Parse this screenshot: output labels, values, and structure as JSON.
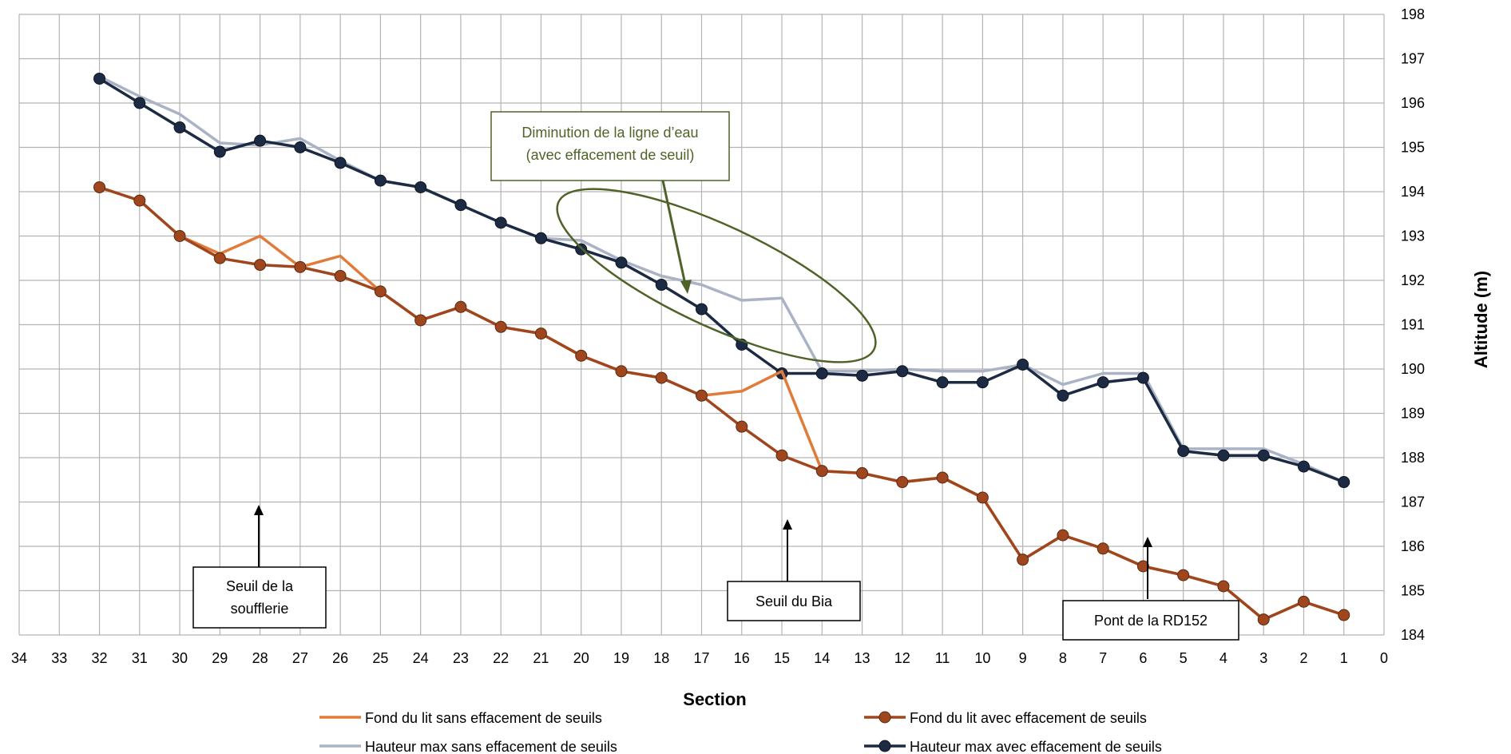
{
  "chart_data": {
    "type": "line",
    "xlabel": "Section",
    "ylabel": "Altitude (m)",
    "xlim": [
      34,
      0
    ],
    "x_reversed": true,
    "ylim": [
      184,
      198
    ],
    "y_axis_position": "right",
    "grid": true,
    "legend_position": "bottom",
    "series": [
      {
        "name": "Fond du lit sans effacement de seuils",
        "color": "#e07b39",
        "marker": false,
        "points": [
          [
            32,
            194.1
          ],
          [
            31,
            193.8
          ],
          [
            30,
            193.0
          ],
          [
            29,
            192.6
          ],
          [
            28,
            193.0
          ],
          [
            27,
            192.3
          ],
          [
            26,
            192.55
          ],
          [
            25,
            191.75
          ],
          [
            24,
            191.1
          ],
          [
            23,
            191.4
          ],
          [
            22,
            190.95
          ],
          [
            21,
            190.8
          ],
          [
            20,
            190.3
          ],
          [
            19,
            189.95
          ],
          [
            18,
            189.8
          ],
          [
            17,
            189.4
          ],
          [
            16,
            189.5
          ],
          [
            15,
            189.95
          ],
          [
            14,
            187.7
          ],
          [
            13,
            187.65
          ],
          [
            12,
            187.45
          ],
          [
            11,
            187.55
          ],
          [
            10,
            187.1
          ],
          [
            9,
            185.7
          ],
          [
            8,
            186.25
          ],
          [
            7,
            185.95
          ],
          [
            6,
            185.55
          ],
          [
            5,
            185.35
          ],
          [
            4,
            185.1
          ],
          [
            3,
            184.35
          ],
          [
            2,
            184.75
          ],
          [
            1,
            184.45
          ]
        ]
      },
      {
        "name": "Fond du lit avec effacement de seuils",
        "color": "#a0461e",
        "marker": true,
        "points": [
          [
            32,
            194.1
          ],
          [
            31,
            193.8
          ],
          [
            30,
            193.0
          ],
          [
            29,
            192.5
          ],
          [
            28,
            192.35
          ],
          [
            27,
            192.3
          ],
          [
            26,
            192.1
          ],
          [
            25,
            191.75
          ],
          [
            24,
            191.1
          ],
          [
            23,
            191.4
          ],
          [
            22,
            190.95
          ],
          [
            21,
            190.8
          ],
          [
            20,
            190.3
          ],
          [
            19,
            189.95
          ],
          [
            18,
            189.8
          ],
          [
            17,
            189.4
          ],
          [
            16,
            188.7
          ],
          [
            15,
            188.05
          ],
          [
            14,
            187.7
          ],
          [
            13,
            187.65
          ],
          [
            12,
            187.45
          ],
          [
            11,
            187.55
          ],
          [
            10,
            187.1
          ],
          [
            9,
            185.7
          ],
          [
            8,
            186.25
          ],
          [
            7,
            185.95
          ],
          [
            6,
            185.55
          ],
          [
            5,
            185.35
          ],
          [
            4,
            185.1
          ],
          [
            3,
            184.35
          ],
          [
            2,
            184.75
          ],
          [
            1,
            184.45
          ]
        ]
      },
      {
        "name": "Hauteur max sans effacement de seuils",
        "color": "#aab3c6",
        "marker": false,
        "points": [
          [
            32,
            196.6
          ],
          [
            31,
            196.15
          ],
          [
            30,
            195.75
          ],
          [
            29,
            195.1
          ],
          [
            28,
            195.05
          ],
          [
            27,
            195.2
          ],
          [
            26,
            194.7
          ],
          [
            25,
            194.25
          ],
          [
            24,
            194.1
          ],
          [
            23,
            193.7
          ],
          [
            22,
            193.3
          ],
          [
            21,
            192.95
          ],
          [
            20,
            192.9
          ],
          [
            19,
            192.45
          ],
          [
            18,
            192.1
          ],
          [
            17,
            191.9
          ],
          [
            16,
            191.55
          ],
          [
            15,
            191.6
          ],
          [
            14,
            189.95
          ],
          [
            13,
            189.95
          ],
          [
            12,
            190.0
          ],
          [
            11,
            189.95
          ],
          [
            10,
            189.95
          ],
          [
            9,
            190.1
          ],
          [
            8,
            189.65
          ],
          [
            7,
            189.9
          ],
          [
            6,
            189.9
          ],
          [
            5,
            188.2
          ],
          [
            4,
            188.2
          ],
          [
            3,
            188.2
          ],
          [
            2,
            187.85
          ],
          [
            1,
            187.45
          ]
        ]
      },
      {
        "name": "Hauteur max avec effacement de seuils",
        "color": "#1c2b43",
        "marker": true,
        "points": [
          [
            32,
            196.55
          ],
          [
            31,
            196.0
          ],
          [
            30,
            195.45
          ],
          [
            29,
            194.9
          ],
          [
            28,
            195.15
          ],
          [
            27,
            195.0
          ],
          [
            26,
            194.65
          ],
          [
            25,
            194.25
          ],
          [
            24,
            194.1
          ],
          [
            23,
            193.7
          ],
          [
            22,
            193.3
          ],
          [
            21,
            192.95
          ],
          [
            20,
            192.7
          ],
          [
            19,
            192.4
          ],
          [
            18,
            191.9
          ],
          [
            17,
            191.35
          ],
          [
            16,
            190.55
          ],
          [
            15,
            189.9
          ],
          [
            14,
            189.9
          ],
          [
            13,
            189.85
          ],
          [
            12,
            189.95
          ],
          [
            11,
            189.7
          ],
          [
            10,
            189.7
          ],
          [
            9,
            190.1
          ],
          [
            8,
            189.4
          ],
          [
            7,
            189.7
          ],
          [
            6,
            189.8
          ],
          [
            5,
            188.15
          ],
          [
            4,
            188.05
          ],
          [
            3,
            188.05
          ],
          [
            2,
            187.8
          ],
          [
            1,
            187.45
          ]
        ]
      }
    ],
    "annotations": [
      {
        "text_lines": [
          "Seuil de la",
          "soufflerie"
        ],
        "arrow_section": 28
      },
      {
        "text_lines": [
          "Seuil du Bia"
        ],
        "arrow_section": 15
      },
      {
        "text_lines": [
          "Pont de la RD152"
        ],
        "arrow_section": 6
      },
      {
        "text_lines": [
          "Diminution de la ligne d’eau",
          "(avec effacement de seuil)"
        ],
        "color": "#4f6228"
      }
    ]
  }
}
